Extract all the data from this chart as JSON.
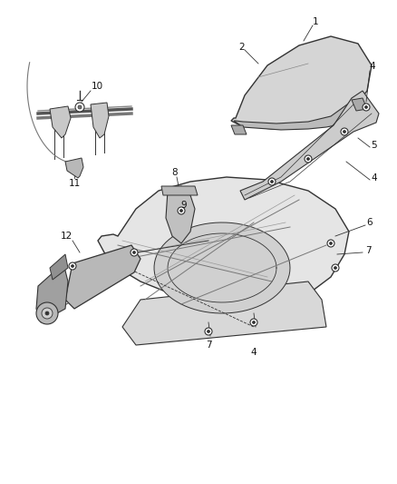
{
  "bg_color": "#ffffff",
  "line_color": "#333333",
  "label_color": "#111111",
  "figsize": [
    4.38,
    5.33
  ],
  "dpi": 100,
  "font_size": 7.5
}
